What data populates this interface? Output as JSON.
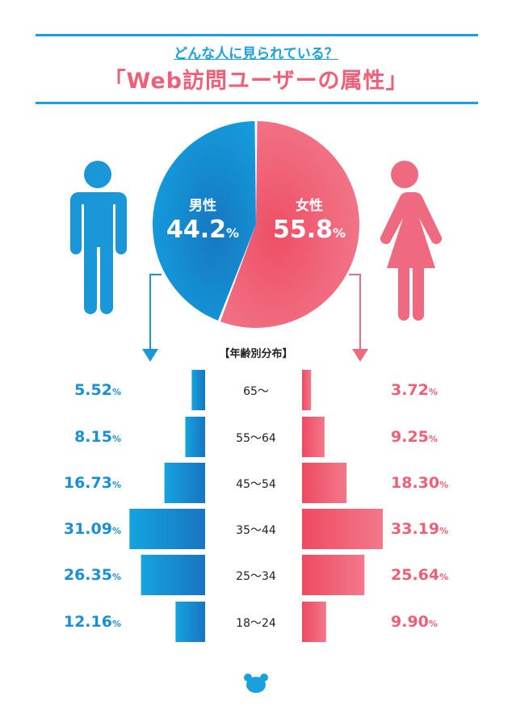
{
  "header": {
    "subtitle": "どんな人に見られている？",
    "title": "「Web訪問ユーザーの属性」"
  },
  "colors": {
    "male": "#1a8fd3",
    "female": "#ef5f78",
    "rule": "#1aa1dd"
  },
  "icons": {
    "male": "man-icon",
    "female": "woman-icon",
    "footer": "bear-icon"
  },
  "chart_data": [
    {
      "type": "pie",
      "title": "",
      "categories": [
        "男性",
        "女性"
      ],
      "values": [
        44.2,
        55.8
      ],
      "unit": "%"
    },
    {
      "type": "bar",
      "title": "【年齢別分布】",
      "categories": [
        "65〜",
        "55〜64",
        "45〜54",
        "35〜44",
        "25〜34",
        "18〜24"
      ],
      "series": [
        {
          "name": "男性",
          "values": [
            5.52,
            8.15,
            16.73,
            31.09,
            26.35,
            12.16
          ]
        },
        {
          "name": "女性",
          "values": [
            3.72,
            9.25,
            18.3,
            33.19,
            25.64,
            9.9
          ]
        }
      ],
      "unit": "%"
    }
  ]
}
